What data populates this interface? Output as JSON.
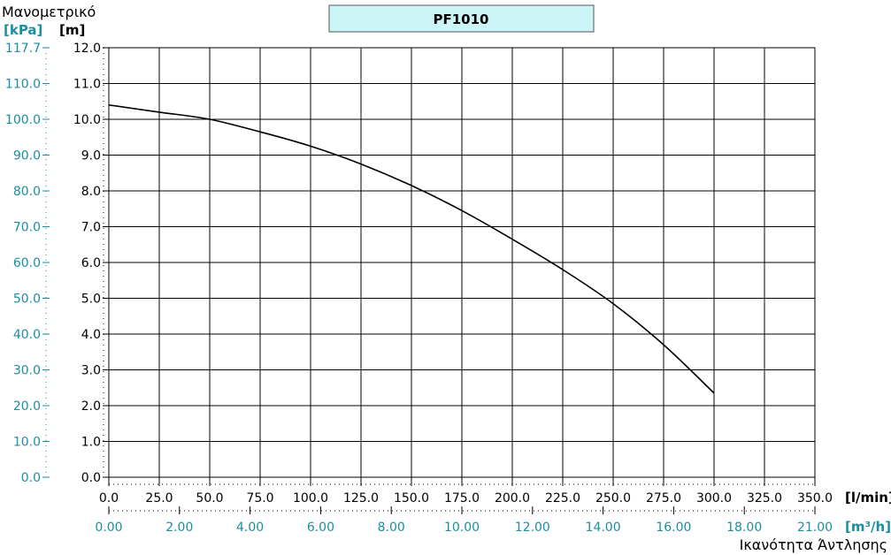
{
  "chart_data": {
    "type": "line",
    "title": "PF1010",
    "y_title": "Μανομετρικό",
    "y_unit_m": "[m]",
    "y_unit_kpa": "[kPa]",
    "x_unit_lmin": "[l/min]",
    "x_unit_m3h": "[m³/h]",
    "xlabel": "Ικανότητα Άντλησης",
    "xlim": [
      0,
      350
    ],
    "ylim": [
      0,
      12
    ],
    "grid": true,
    "x_ticks_lmin": [
      "0.0",
      "25.0",
      "50.0",
      "75.0",
      "100.0",
      "125.0",
      "150.0",
      "175.0",
      "200.0",
      "225.0",
      "250.0",
      "275.0",
      "300.0",
      "325.0",
      "350.0"
    ],
    "x_ticks_m3h": [
      "0.00",
      "2.00",
      "4.00",
      "6.00",
      "8.00",
      "10.00",
      "12.00",
      "14.00",
      "16.00",
      "18.00",
      "21.00"
    ],
    "y_ticks_m": [
      "0.0",
      "1.0",
      "2.0",
      "3.0",
      "4.0",
      "5.0",
      "6.0",
      "7.0",
      "8.0",
      "9.0",
      "10.0",
      "11.0",
      "12.0"
    ],
    "y_ticks_kpa": [
      "0.0",
      "10.0",
      "20.0",
      "30.0",
      "40.0",
      "50.0",
      "60.0",
      "70.0",
      "80.0",
      "90.0",
      "100.0",
      "110.0",
      "117.7"
    ],
    "series": [
      {
        "x": [
          0,
          25,
          50,
          75,
          100,
          125,
          150,
          175,
          200,
          225,
          250,
          275,
          300
        ],
        "y": [
          10.4,
          10.2,
          10.0,
          9.65,
          9.25,
          8.75,
          8.15,
          7.45,
          6.65,
          5.8,
          4.85,
          3.7,
          2.35
        ]
      }
    ]
  }
}
